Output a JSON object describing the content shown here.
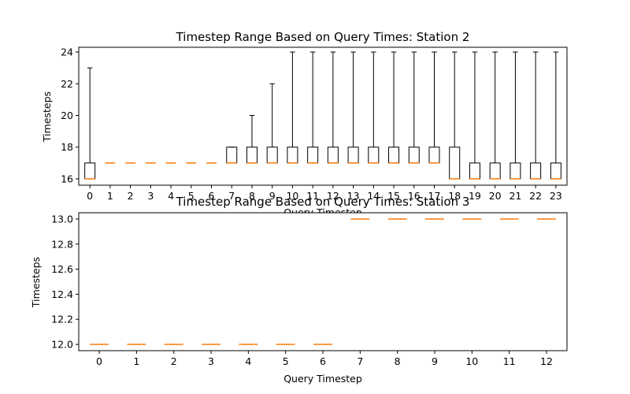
{
  "chart_data": [
    {
      "type": "boxplot",
      "title": "Timestep Range Based on Query Times: Station 2",
      "xlabel": "Query Timestep",
      "ylabel": "Timesteps",
      "categories": [
        "0",
        "1",
        "2",
        "3",
        "4",
        "5",
        "6",
        "7",
        "8",
        "9",
        "10",
        "11",
        "12",
        "13",
        "14",
        "15",
        "16",
        "17",
        "18",
        "19",
        "20",
        "21",
        "22",
        "23"
      ],
      "ylim": [
        15.6,
        24.3
      ],
      "yticks": [
        "16",
        "18",
        "20",
        "22",
        "24"
      ],
      "ytick_values": [
        16,
        18,
        20,
        22,
        24
      ],
      "boxes": [
        {
          "whislo": 16,
          "q1": 16,
          "med": 16,
          "q3": 17,
          "whishi": 23
        },
        {
          "whislo": 17,
          "q1": 17,
          "med": 17,
          "q3": 17,
          "whishi": 17
        },
        {
          "whislo": 17,
          "q1": 17,
          "med": 17,
          "q3": 17,
          "whishi": 17
        },
        {
          "whislo": 17,
          "q1": 17,
          "med": 17,
          "q3": 17,
          "whishi": 17
        },
        {
          "whislo": 17,
          "q1": 17,
          "med": 17,
          "q3": 17,
          "whishi": 17
        },
        {
          "whislo": 17,
          "q1": 17,
          "med": 17,
          "q3": 17,
          "whishi": 17
        },
        {
          "whislo": 17,
          "q1": 17,
          "med": 17,
          "q3": 17,
          "whishi": 17
        },
        {
          "whislo": 17,
          "q1": 17,
          "med": 17,
          "q3": 18,
          "whishi": 18
        },
        {
          "whislo": 17,
          "q1": 17,
          "med": 17,
          "q3": 18,
          "whishi": 20
        },
        {
          "whislo": 17,
          "q1": 17,
          "med": 17,
          "q3": 18,
          "whishi": 22
        },
        {
          "whislo": 17,
          "q1": 17,
          "med": 17,
          "q3": 18,
          "whishi": 24
        },
        {
          "whislo": 17,
          "q1": 17,
          "med": 17,
          "q3": 18,
          "whishi": 24
        },
        {
          "whislo": 17,
          "q1": 17,
          "med": 17,
          "q3": 18,
          "whishi": 24
        },
        {
          "whislo": 17,
          "q1": 17,
          "med": 17,
          "q3": 18,
          "whishi": 24
        },
        {
          "whislo": 17,
          "q1": 17,
          "med": 17,
          "q3": 18,
          "whishi": 24
        },
        {
          "whislo": 17,
          "q1": 17,
          "med": 17,
          "q3": 18,
          "whishi": 24
        },
        {
          "whislo": 17,
          "q1": 17,
          "med": 17,
          "q3": 18,
          "whishi": 24
        },
        {
          "whislo": 17,
          "q1": 17,
          "med": 17,
          "q3": 18,
          "whishi": 24
        },
        {
          "whislo": 16,
          "q1": 16,
          "med": 16,
          "q3": 18,
          "whishi": 24
        },
        {
          "whislo": 16,
          "q1": 16,
          "med": 16,
          "q3": 17,
          "whishi": 24
        },
        {
          "whislo": 16,
          "q1": 16,
          "med": 16,
          "q3": 17,
          "whishi": 24
        },
        {
          "whislo": 16,
          "q1": 16,
          "med": 16,
          "q3": 17,
          "whishi": 24
        },
        {
          "whislo": 16,
          "q1": 16,
          "med": 16,
          "q3": 17,
          "whishi": 24
        },
        {
          "whislo": 16,
          "q1": 16,
          "med": 16,
          "q3": 17,
          "whishi": 24
        }
      ],
      "grid": false,
      "colors": {
        "box": "#000000",
        "median": "#ff7f0e"
      }
    },
    {
      "type": "boxplot",
      "title": "Timestep Range Based on Query Times: Station 3",
      "xlabel": "Query Timestep",
      "ylabel": "Timesteps",
      "categories": [
        "0",
        "1",
        "2",
        "3",
        "4",
        "5",
        "6",
        "7",
        "8",
        "9",
        "10",
        "11",
        "12"
      ],
      "ylim": [
        11.95,
        13.05
      ],
      "yticks": [
        "12.0",
        "12.2",
        "12.4",
        "12.6",
        "12.8",
        "13.0"
      ],
      "ytick_values": [
        12.0,
        12.2,
        12.4,
        12.6,
        12.8,
        13.0
      ],
      "boxes": [
        {
          "whislo": 12,
          "q1": 12,
          "med": 12,
          "q3": 12,
          "whishi": 12
        },
        {
          "whislo": 12,
          "q1": 12,
          "med": 12,
          "q3": 12,
          "whishi": 12
        },
        {
          "whislo": 12,
          "q1": 12,
          "med": 12,
          "q3": 12,
          "whishi": 12
        },
        {
          "whislo": 12,
          "q1": 12,
          "med": 12,
          "q3": 12,
          "whishi": 12
        },
        {
          "whislo": 12,
          "q1": 12,
          "med": 12,
          "q3": 12,
          "whishi": 12
        },
        {
          "whislo": 12,
          "q1": 12,
          "med": 12,
          "q3": 12,
          "whishi": 12
        },
        {
          "whislo": 12,
          "q1": 12,
          "med": 12,
          "q3": 12,
          "whishi": 12
        },
        {
          "whislo": 13,
          "q1": 13,
          "med": 13,
          "q3": 13,
          "whishi": 13
        },
        {
          "whislo": 13,
          "q1": 13,
          "med": 13,
          "q3": 13,
          "whishi": 13
        },
        {
          "whislo": 13,
          "q1": 13,
          "med": 13,
          "q3": 13,
          "whishi": 13
        },
        {
          "whislo": 13,
          "q1": 13,
          "med": 13,
          "q3": 13,
          "whishi": 13
        },
        {
          "whislo": 13,
          "q1": 13,
          "med": 13,
          "q3": 13,
          "whishi": 13
        },
        {
          "whislo": 13,
          "q1": 13,
          "med": 13,
          "q3": 13,
          "whishi": 13
        }
      ],
      "grid": false,
      "colors": {
        "box": "#000000",
        "median": "#ff7f0e"
      }
    }
  ]
}
